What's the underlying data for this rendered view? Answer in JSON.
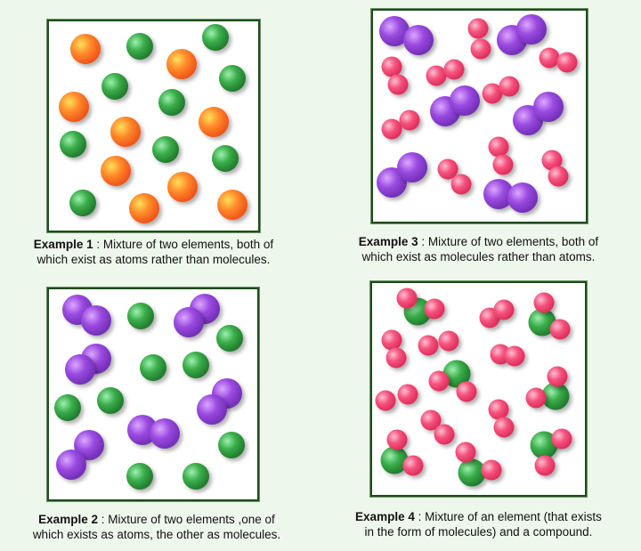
{
  "examples": [
    {
      "label": "Example 1",
      "text_line1": " : Mixture of two elements, both of",
      "text_line2": "which exist as atoms rather than molecules."
    },
    {
      "label": "Example 2",
      "text_line1": " : Mixture of two elements ,one of",
      "text_line2": "which exists as atoms, the other as molecules."
    },
    {
      "label": "Example 3",
      "text_line1": " : Mixture of two elements, both of",
      "text_line2": "which exist as molecules rather than atoms."
    },
    {
      "label": "Example 4",
      "text_line1": " : Mixture of an element (that exists",
      "text_line2": "in the form of molecules) and a compound."
    }
  ],
  "colors": {
    "background": "#eef7ec",
    "border": "#1d4d1a",
    "orange_atom": "#ff6a1f",
    "green_atom": "#2e9b3c",
    "purple_atom": "#8a3bd0",
    "pink_atom": "#f0406e"
  }
}
